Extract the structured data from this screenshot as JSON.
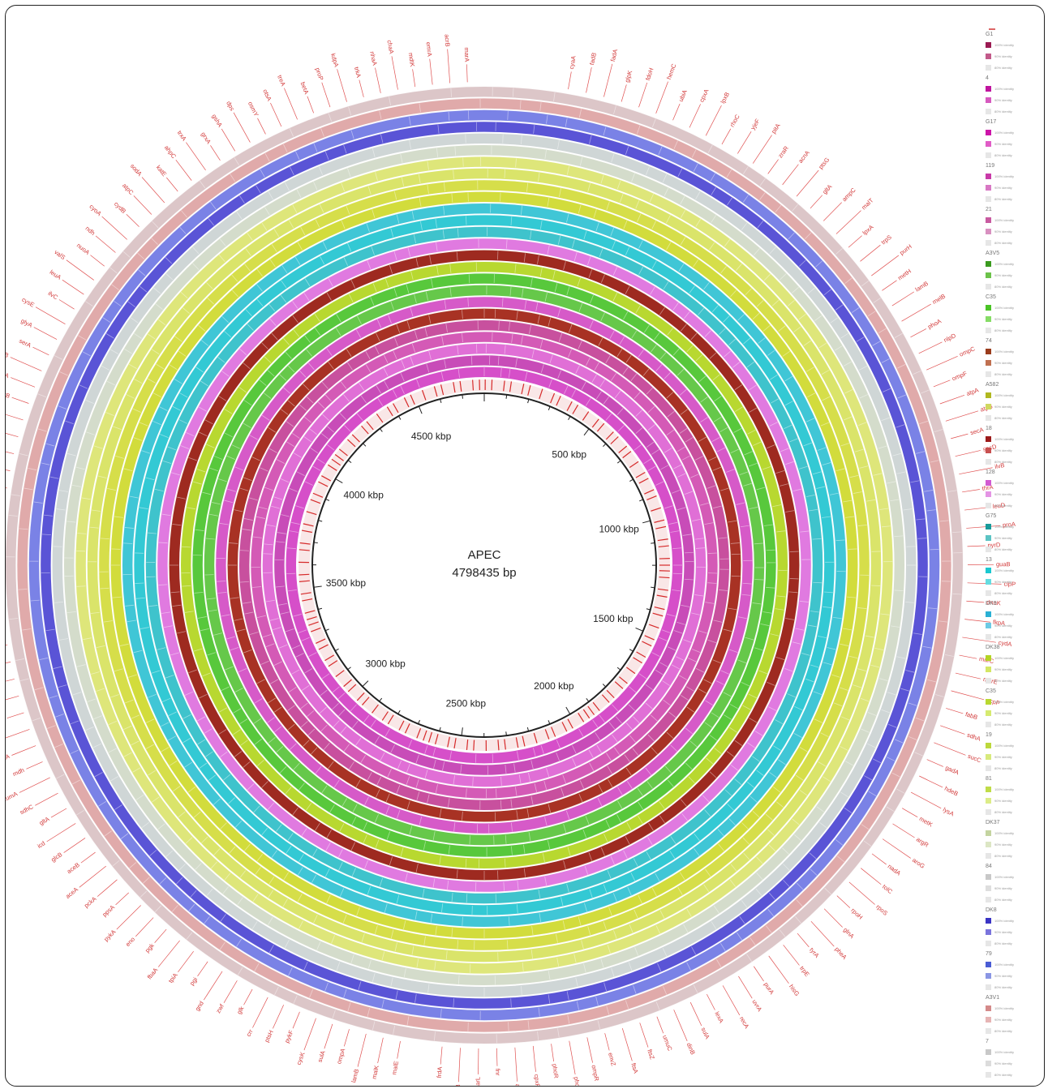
{
  "center": {
    "title": "APEC",
    "size": "4798435 bp"
  },
  "ticks": [
    "500 kbp",
    "1000 kbp",
    "1500 kbp",
    "2000 kbp",
    "2500 kbp",
    "3000 kbp",
    "3500 kbp",
    "4000 kbp",
    "4500 kbp"
  ],
  "identity_labels": [
    "100% identity",
    "90% identity",
    "80% identity"
  ],
  "legend": [
    {
      "name": "G1",
      "hi": "#9a1b52",
      "mid": "#c25a8a"
    },
    {
      "name": "4",
      "hi": "#c0149e",
      "mid": "#d659be"
    },
    {
      "name": "G17",
      "hi": "#cc14a8",
      "mid": "#e05cc6"
    },
    {
      "name": "119",
      "hi": "#c83aa8",
      "mid": "#d878c4"
    },
    {
      "name": "21",
      "hi": "#c85aa0",
      "mid": "#d890c0"
    },
    {
      "name": "A3V5",
      "hi": "#3a9a1e",
      "mid": "#6cc24a"
    },
    {
      "name": "C35",
      "hi": "#4ac426",
      "mid": "#86dc66"
    },
    {
      "name": "74",
      "hi": "#9a3c1c",
      "mid": "#c07050"
    },
    {
      "name": "A582",
      "hi": "#b0b820",
      "mid": "#d0d860"
    },
    {
      "name": "18",
      "hi": "#9c1a1a",
      "mid": "#c85050"
    },
    {
      "name": "128",
      "hi": "#d25ad2",
      "mid": "#e494e4"
    },
    {
      "name": "G75",
      "hi": "#1a9a9a",
      "mid": "#5cc4c4"
    },
    {
      "name": "13",
      "hi": "#1ac8d0",
      "mid": "#66dce0"
    },
    {
      "name": "DK9",
      "hi": "#2ab0d4",
      "mid": "#6ccae4"
    },
    {
      "name": "DK38",
      "hi": "#b4d424",
      "mid": "#d4e664"
    },
    {
      "name": "C35",
      "hi": "#b8d830",
      "mid": "#d6ea70"
    },
    {
      "name": "19",
      "hi": "#bcd83c",
      "mid": "#d8ea7c"
    },
    {
      "name": "81",
      "hi": "#c0dc48",
      "mid": "#dcec88"
    },
    {
      "name": "DK37",
      "hi": "#c4d4a0",
      "mid": "#dce6c4"
    },
    {
      "name": "84",
      "hi": "#c8c8c8",
      "mid": "#dedede"
    },
    {
      "name": "DK8",
      "hi": "#3a34c4",
      "mid": "#7a74dc"
    },
    {
      "name": "79",
      "hi": "#4a5cd4",
      "mid": "#8a96e4"
    },
    {
      "name": "A3V1",
      "hi": "#d48a8a",
      "mid": "#e6b4b4"
    },
    {
      "name": "7",
      "hi": "#c8c8c8",
      "mid": "#dcdcdc"
    }
  ],
  "genes_right": [
    "cyaA",
    "fadB",
    "fadA",
    "glpK",
    "fdoH",
    "hemC",
    "ubiA",
    "cpxA",
    "lpxB",
    "rhoC",
    "yjeF",
    "pitA",
    "zraR",
    "acnA",
    "ptsG",
    "gltA",
    "ampC",
    "malT",
    "lpxA",
    "trpS",
    "purH",
    "metH",
    "lamB",
    "melB",
    "phoA",
    "nlpD",
    "ompC",
    "ompF",
    "atpA",
    "atpB",
    "secA",
    "secD",
    "ilvB",
    "thrA",
    "leuD",
    "proA",
    "pyrD",
    "guaB",
    "clpP",
    "dnaK",
    "fkpA",
    "cydA",
    "murC",
    "murE",
    "acpP",
    "fabB",
    "sdhA",
    "sucC",
    "gadA",
    "hdeB",
    "lysA",
    "metK",
    "argR",
    "aroG",
    "nadA",
    "tolC",
    "rpoS",
    "rpoH",
    "glnA",
    "pheA",
    "tyrA",
    "trpE",
    "hisG",
    "purA",
    "uvrA",
    "recA",
    "lexA",
    "sulA",
    "dinB",
    "umuC",
    "ftsZ",
    "ftsA",
    "envZ",
    "ompR",
    "phoB",
    "phoR",
    "cpxR",
    "arcA",
    "fnr",
    "narL",
    "nirB",
    "frdA"
  ],
  "genes_left": [
    "malE",
    "malK",
    "lamB",
    "ompA",
    "sulA",
    "cysK",
    "pykF",
    "ptsH",
    "crr",
    "glk",
    "zwf",
    "gnd",
    "pgi",
    "tpiA",
    "fbaA",
    "pgk",
    "eno",
    "pykA",
    "ppsA",
    "pckA",
    "aceA",
    "aceB",
    "glcB",
    "icd",
    "gltA",
    "sdhC",
    "fumA",
    "mdh",
    "ackA",
    "pta",
    "adhE",
    "ldhA",
    "focA",
    "pflB",
    "frdB",
    "dcuA",
    "aspA",
    "glnB",
    "gdhA",
    "asnB",
    "thrB",
    "metA",
    "lysC",
    "dapA",
    "argA",
    "proB",
    "hisA",
    "trpA",
    "tyrB",
    "aroA",
    "pheB",
    "serA",
    "glyA",
    "cysE",
    "ilvC",
    "leuA",
    "valS",
    "nuoA",
    "ndh",
    "cyoA",
    "cydB",
    "atpC",
    "sodA",
    "katE",
    "ahpC",
    "trxA",
    "grxA",
    "gshA",
    "dps",
    "osmY",
    "otsA",
    "treA",
    "betA",
    "proP",
    "kdpA",
    "trkA",
    "nhaA",
    "chaA",
    "mdtK",
    "emrA",
    "acrB",
    "marA"
  ]
}
